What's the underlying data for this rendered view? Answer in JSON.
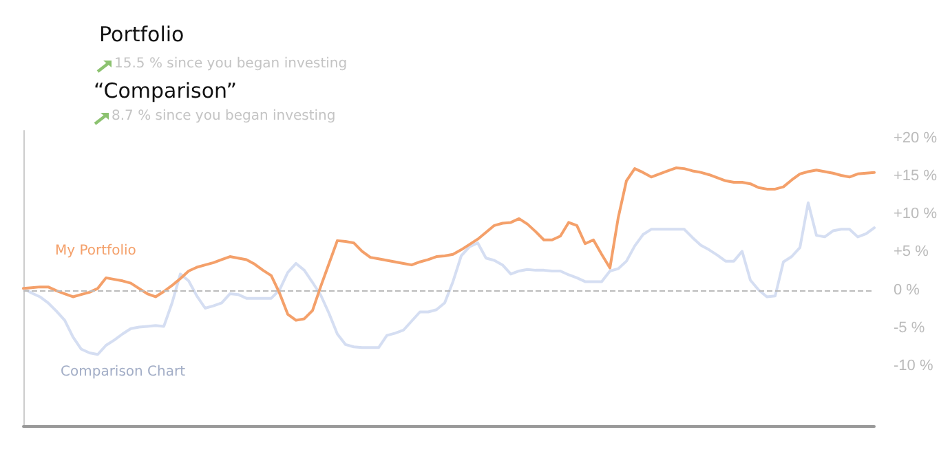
{
  "chart_data": {
    "type": "line",
    "title": "Portfolio",
    "subtitle": "“Comparison”",
    "annotations": [
      "15.5 % since you began investing",
      "8.7 % since you began investing"
    ],
    "categories": [
      null,
      null,
      null,
      null,
      null,
      null,
      null,
      null,
      null,
      null,
      null,
      null,
      null,
      null,
      null,
      null,
      null,
      null,
      null,
      null,
      null,
      null,
      null,
      null,
      null,
      null,
      null,
      null,
      null,
      null,
      null,
      null,
      null,
      null,
      null,
      null,
      null,
      null,
      null,
      null,
      null,
      null,
      null,
      null,
      null,
      null,
      null,
      null,
      null,
      null,
      null,
      null,
      null,
      null,
      null,
      null,
      null,
      null,
      null,
      null,
      null,
      null,
      null,
      null,
      null,
      null,
      null,
      null,
      null,
      null,
      null,
      null,
      null,
      null,
      null,
      null,
      null,
      null,
      null,
      null,
      null,
      null,
      null,
      null,
      null,
      null,
      null,
      null,
      null,
      null,
      null,
      null,
      null,
      null,
      null,
      null,
      null,
      null,
      null,
      null,
      null,
      null,
      null,
      null
    ],
    "series": [
      {
        "name": "My Portfolio",
        "color": "#f4a06a",
        "values": [
          0.2,
          0.3,
          0.4,
          0.4,
          -0.1,
          -0.5,
          -0.9,
          -0.6,
          -0.3,
          0.2,
          1.6,
          1.4,
          1.2,
          0.9,
          0.2,
          -0.5,
          -0.9,
          -0.2,
          0.6,
          1.5,
          2.5,
          3.0,
          3.3,
          3.6,
          4.0,
          4.4,
          4.2,
          4.0,
          3.4,
          2.6,
          1.9,
          -0.4,
          -3.2,
          -4.0,
          -3.8,
          -2.7,
          0.5,
          3.5,
          6.5,
          6.4,
          6.2,
          5.1,
          4.3,
          4.1,
          3.9,
          3.7,
          3.5,
          3.3,
          3.7,
          4.0,
          4.4,
          4.5,
          4.7,
          5.3,
          6.0,
          6.7,
          7.6,
          8.5,
          8.8,
          8.9,
          9.4,
          8.7,
          7.7,
          6.6,
          6.6,
          7.1,
          8.9,
          8.5,
          6.1,
          6.6,
          4.7,
          2.9,
          9.5,
          14.4,
          16,
          15.5,
          14.9,
          15.3,
          15.7,
          16.1,
          16,
          15.7,
          15.5,
          15.2,
          14.8,
          14.4,
          14.2,
          14.2,
          14.0,
          13.5,
          13.3,
          13.3,
          13.6,
          14.5,
          15.3,
          15.6,
          15.8,
          15.6,
          15.4,
          15.1,
          14.9,
          15.3,
          15.4,
          15.5
        ]
      },
      {
        "name": "Comparison Chart",
        "color": "#d5def2",
        "values": [
          0.2,
          -0.4,
          -0.9,
          -1.7,
          -2.8,
          -4,
          -6.2,
          -7.8,
          -8.3,
          -8.5,
          -7.3,
          -6.6,
          -5.8,
          -5.1,
          -4.9,
          -4.8,
          -4.7,
          -4.8,
          -1.7,
          2.1,
          1.2,
          -0.8,
          -2.4,
          -2.1,
          -1.7,
          -0.5,
          -0.6,
          -1.1,
          -1.1,
          -1.1,
          -1.1,
          0,
          2.3,
          3.5,
          2.6,
          1.0,
          -0.7,
          -3.1,
          -5.8,
          -7.2,
          -7.5,
          -7.6,
          -7.6,
          -7.6,
          -6.0,
          -5.7,
          -5.3,
          -4.1,
          -2.9,
          -2.9,
          -2.6,
          -1.7,
          1.1,
          4.5,
          5.7,
          6.2,
          4.2,
          3.9,
          3.3,
          2.1,
          2.5,
          2.7,
          2.6,
          2.6,
          2.5,
          2.5,
          2.0,
          1.6,
          1.1,
          1.1,
          1.1,
          2.5,
          2.8,
          3.8,
          5.8,
          7.3,
          8,
          8,
          8,
          8,
          8,
          6.9,
          5.9,
          5.3,
          4.6,
          3.8,
          3.8,
          5.1,
          1.3,
          0,
          -0.9,
          -0.8,
          3.7,
          4.4,
          5.6,
          11.5,
          7.2,
          7.0,
          7.8,
          8,
          8,
          7.0,
          7.4,
          8.2
        ]
      }
    ],
    "ylim": [
      -18,
      21
    ],
    "yticks": [
      {
        "value": 20,
        "label": "+20 %"
      },
      {
        "value": 15,
        "label": "+15 %"
      },
      {
        "value": 10,
        "label": "+10 %"
      },
      {
        "value": 5,
        "label": "+5 %"
      },
      {
        "value": 0,
        "label": "0 %"
      },
      {
        "value": -5,
        "label": "-5 %"
      },
      {
        "value": -10,
        "label": "-10 %"
      }
    ],
    "tick_labels": "y",
    "ref_lines": [
      {
        "axis": "y",
        "value": 0,
        "color": "#bbbbbb",
        "line_style": "dashed"
      }
    ],
    "grid": false,
    "legend": false,
    "line_style": "solid"
  }
}
